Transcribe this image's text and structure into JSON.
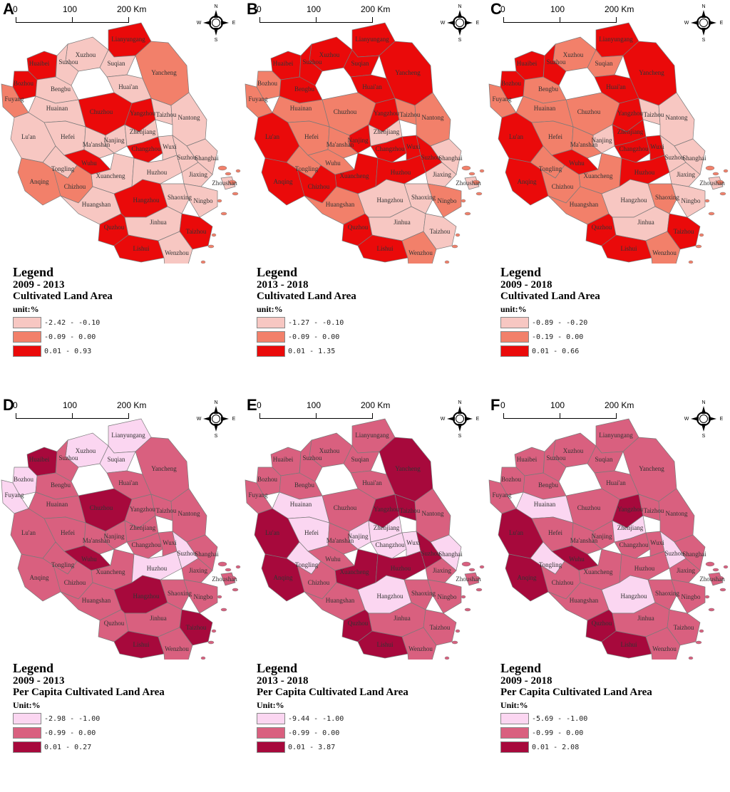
{
  "cities": [
    "Xuzhou",
    "Lianyungang",
    "Suqian",
    "Huaibei",
    "Suzhou_AH",
    "Bozhou",
    "Fuyang",
    "Bengbu",
    "Huai'an",
    "Yancheng",
    "Chuzhou",
    "Yangzhou",
    "Taizhou_JS",
    "Huainan",
    "Lu'an",
    "Hefei",
    "Nanjing",
    "Zhenjiang",
    "Nantong",
    "Ma'anshan",
    "Changzhou",
    "Wuxi",
    "Suzhou_JS",
    "Wuhu",
    "Shanghai",
    "Tongling",
    "Xuancheng",
    "Huzhou",
    "Jiaxing",
    "Anqing",
    "Chizhou",
    "Huangshan",
    "Hangzhou",
    "Shaoxing",
    "Ningbo",
    "Zhoushan",
    "Quzhou",
    "Jinhua",
    "Taizhou_ZJ",
    "Lishui",
    "Wenzhou"
  ],
  "city_labels": {
    "Xuzhou": "Xuzhou",
    "Lianyungang": "Lianyungang",
    "Suqian": "Suqian",
    "Huaibei": "Huaibei",
    "Suzhou_AH": "Suzhou",
    "Bozhou": "Bozhou",
    "Fuyang": "Fuyang",
    "Bengbu": "Bengbu",
    "Huai'an": "Huai'an",
    "Yancheng": "Yancheng",
    "Chuzhou": "Chuzhou",
    "Yangzhou": "Yangzhou",
    "Taizhou_JS": "Taizhou",
    "Huainan": "Huainan",
    "Lu'an": "Lu'an",
    "Hefei": "Hefei",
    "Nanjing": "Nanjing",
    "Zhenjiang": "Zhenjiang",
    "Nantong": "Nantong",
    "Ma'anshan": "Ma'anshan",
    "Changzhou": "Changzhou",
    "Wuxi": "Wuxi",
    "Suzhou_JS": "Suzhou",
    "Wuhu": "Wuhu",
    "Shanghai": "Shanghai",
    "Tongling": "Tongling",
    "Xuancheng": "Xuancheng",
    "Huzhou": "Huzhou",
    "Jiaxing": "Jiaxing",
    "Anqing": "Anqing",
    "Chizhou": "Chizhou",
    "Huangshan": "Huangshan",
    "Hangzhou": "Hangzhou",
    "Shaoxing": "Shaoxing",
    "Ningbo": "Ningbo",
    "Zhoushan": "Zhoushan",
    "Quzhou": "Quzhou",
    "Jinhua": "Jinhua",
    "Taizhou_ZJ": "Taizhou",
    "Lishui": "Lishui",
    "Wenzhou": "Wenzhou"
  },
  "compass": {
    "n": "N",
    "s": "S",
    "e": "E",
    "w": "W"
  },
  "scale": {
    "t0": "0",
    "t1": "100",
    "t2": "200 Km"
  },
  "panels": [
    {
      "letter": "A",
      "legend_title": "Legend",
      "period": "2009 - 2013",
      "variable": "Cultivated Land Area",
      "unit": "unit:%",
      "palette": [
        "#f7c7c2",
        "#f2806a",
        "#ea0a0a"
      ],
      "classes": [
        "-2.42 - -0.10",
        "-0.09 - 0.00",
        "0.01 - 0.93"
      ],
      "values": {
        "Xuzhou": 0,
        "Lianyungang": 2,
        "Suqian": 0,
        "Huaibei": 2,
        "Suzhou_AH": 0,
        "Bozhou": 2,
        "Fuyang": 1,
        "Bengbu": 0,
        "Huai'an": 0,
        "Yancheng": 1,
        "Chuzhou": 2,
        "Yangzhou": 2,
        "Taizhou_JS": 0,
        "Huainan": 0,
        "Lu'an": 0,
        "Hefei": 0,
        "Nanjing": 0,
        "Zhenjiang": 0,
        "Nantong": 0,
        "Ma'anshan": 0,
        "Changzhou": 2,
        "Wuxi": 0,
        "Suzhou_JS": 0,
        "Wuhu": 2,
        "Shanghai": 0,
        "Tongling": 0,
        "Xuancheng": 0,
        "Huzhou": 0,
        "Jiaxing": 0,
        "Anqing": 1,
        "Chizhou": 1,
        "Huangshan": 0,
        "Hangzhou": 2,
        "Shaoxing": 0,
        "Ningbo": 0,
        "Zhoushan": 0,
        "Quzhou": 2,
        "Jinhua": 0,
        "Taizhou_ZJ": 2,
        "Lishui": 2,
        "Wenzhou": 0
      }
    },
    {
      "letter": "B",
      "legend_title": "Legend",
      "period": "2013 - 2018",
      "variable": "Cultivated Land Area",
      "unit": "unit:%",
      "palette": [
        "#f7c7c2",
        "#f2806a",
        "#ea0a0a"
      ],
      "classes": [
        "-1.27 - -0.10",
        "-0.09 - 0.00",
        "0.01 - 1.35"
      ],
      "values": {
        "Xuzhou": 2,
        "Lianyungang": 2,
        "Suqian": 2,
        "Huaibei": 2,
        "Suzhou_AH": 2,
        "Bozhou": 1,
        "Fuyang": 1,
        "Bengbu": 2,
        "Huai'an": 2,
        "Yancheng": 2,
        "Chuzhou": 1,
        "Yangzhou": 2,
        "Taizhou_JS": 1,
        "Huainan": 1,
        "Lu'an": 2,
        "Hefei": 1,
        "Nanjing": 2,
        "Zhenjiang": 0,
        "Nantong": 1,
        "Ma'anshan": 1,
        "Changzhou": 2,
        "Wuxi": 2,
        "Suzhou_JS": 2,
        "Wuhu": 1,
        "Shanghai": 0,
        "Tongling": 1,
        "Xuancheng": 2,
        "Huzhou": 2,
        "Jiaxing": 0,
        "Anqing": 2,
        "Chizhou": 2,
        "Huangshan": 1,
        "Hangzhou": 0,
        "Shaoxing": 0,
        "Ningbo": 1,
        "Zhoushan": 0,
        "Quzhou": 2,
        "Jinhua": 0,
        "Taizhou_ZJ": 0,
        "Lishui": 2,
        "Wenzhou": 1
      }
    },
    {
      "letter": "C",
      "legend_title": "Legend",
      "period": "2009 - 2018",
      "variable": "Cultivated Land Area",
      "unit": "unit:%",
      "palette": [
        "#f7c7c2",
        "#f2806a",
        "#ea0a0a"
      ],
      "classes": [
        "-0.89 - -0.20",
        "-0.19 - 0.00",
        "0.01 - 0.66"
      ],
      "values": {
        "Xuzhou": 1,
        "Lianyungang": 2,
        "Suqian": 1,
        "Huaibei": 2,
        "Suzhou_AH": 2,
        "Bozhou": 2,
        "Fuyang": 1,
        "Bengbu": 1,
        "Huai'an": 2,
        "Yancheng": 2,
        "Chuzhou": 1,
        "Yangzhou": 2,
        "Taizhou_JS": 0,
        "Huainan": 1,
        "Lu'an": 2,
        "Hefei": 1,
        "Nanjing": 0,
        "Zhenjiang": 2,
        "Nantong": 0,
        "Ma'anshan": 1,
        "Changzhou": 2,
        "Wuxi": 2,
        "Suzhou_JS": 0,
        "Wuhu": 2,
        "Shanghai": 0,
        "Tongling": 1,
        "Xuancheng": 1,
        "Huzhou": 2,
        "Jiaxing": 0,
        "Anqing": 2,
        "Chizhou": 1,
        "Huangshan": 1,
        "Hangzhou": 0,
        "Shaoxing": 1,
        "Ningbo": 0,
        "Zhoushan": 0,
        "Quzhou": 2,
        "Jinhua": 0,
        "Taizhou_ZJ": 2,
        "Lishui": 2,
        "Wenzhou": 1
      }
    },
    {
      "letter": "D",
      "legend_title": "Legend",
      "period": "2009 - 2013",
      "variable": "Per Capita Cultivated Land Area",
      "unit": "Unit:%",
      "palette": [
        "#fbd6f1",
        "#d9607f",
        "#a7093c"
      ],
      "classes": [
        "-2.98 - -1.00",
        "-0.99 - 0.00",
        "0.01 - 0.27"
      ],
      "values": {
        "Xuzhou": 0,
        "Lianyungang": 0,
        "Suqian": 0,
        "Huaibei": 2,
        "Suzhou_AH": 1,
        "Bozhou": 0,
        "Fuyang": 0,
        "Bengbu": 1,
        "Huai'an": 1,
        "Yancheng": 1,
        "Chuzhou": 2,
        "Yangzhou": 1,
        "Taizhou_JS": 1,
        "Huainan": 1,
        "Lu'an": 1,
        "Hefei": 1,
        "Nanjing": 1,
        "Zhenjiang": 1,
        "Nantong": 1,
        "Ma'anshan": 1,
        "Changzhou": 1,
        "Wuxi": 1,
        "Suzhou_JS": 0,
        "Wuhu": 2,
        "Shanghai": 1,
        "Tongling": 1,
        "Xuancheng": 1,
        "Huzhou": 0,
        "Jiaxing": 1,
        "Anqing": 1,
        "Chizhou": 1,
        "Huangshan": 1,
        "Hangzhou": 2,
        "Shaoxing": 1,
        "Ningbo": 1,
        "Zhoushan": 1,
        "Quzhou": 1,
        "Jinhua": 1,
        "Taizhou_ZJ": 2,
        "Lishui": 2,
        "Wenzhou": 1
      }
    },
    {
      "letter": "E",
      "legend_title": "Legend",
      "period": "2013 - 2018",
      "variable": "Per Capita Cultivated Land Area",
      "unit": "Unit:%",
      "palette": [
        "#fbd6f1",
        "#d9607f",
        "#a7093c"
      ],
      "classes": [
        "-9.44 - -1.00",
        "-0.99 - 0.00",
        "0.01 - 3.87"
      ],
      "values": {
        "Xuzhou": 1,
        "Lianyungang": 1,
        "Suqian": 1,
        "Huaibei": 1,
        "Suzhou_AH": 1,
        "Bozhou": 1,
        "Fuyang": 1,
        "Bengbu": 1,
        "Huai'an": 1,
        "Yancheng": 2,
        "Chuzhou": 1,
        "Yangzhou": 2,
        "Taizhou_JS": 2,
        "Huainan": 0,
        "Lu'an": 2,
        "Hefei": 0,
        "Nanjing": 0,
        "Zhenjiang": 0,
        "Nantong": 1,
        "Ma'anshan": 1,
        "Changzhou": 0,
        "Wuxi": 0,
        "Suzhou_JS": 2,
        "Wuhu": 1,
        "Shanghai": 0,
        "Tongling": 0,
        "Xuancheng": 2,
        "Huzhou": 2,
        "Jiaxing": 1,
        "Anqing": 2,
        "Chizhou": 1,
        "Huangshan": 1,
        "Hangzhou": 0,
        "Shaoxing": 1,
        "Ningbo": 1,
        "Zhoushan": 1,
        "Quzhou": 2,
        "Jinhua": 1,
        "Taizhou_ZJ": 1,
        "Lishui": 2,
        "Wenzhou": 1
      }
    },
    {
      "letter": "F",
      "legend_title": "Legend",
      "period": "2009 - 2018",
      "variable": "Per Capita Cultivated Land Area",
      "unit": "Unit:%",
      "palette": [
        "#fbd6f1",
        "#d9607f",
        "#a7093c"
      ],
      "classes": [
        "-5.69 - -1.00",
        "-0.99 - 0.00",
        "0.01 - 2.08"
      ],
      "values": {
        "Xuzhou": 1,
        "Lianyungang": 1,
        "Suqian": 1,
        "Huaibei": 1,
        "Suzhou_AH": 1,
        "Bozhou": 1,
        "Fuyang": 1,
        "Bengbu": 1,
        "Huai'an": 1,
        "Yancheng": 1,
        "Chuzhou": 1,
        "Yangzhou": 2,
        "Taizhou_JS": 1,
        "Huainan": 0,
        "Lu'an": 2,
        "Hefei": 1,
        "Nanjing": 1,
        "Zhenjiang": 0,
        "Nantong": 1,
        "Ma'anshan": 1,
        "Changzhou": 1,
        "Wuxi": 1,
        "Suzhou_JS": 0,
        "Wuhu": 2,
        "Shanghai": 1,
        "Tongling": 0,
        "Xuancheng": 1,
        "Huzhou": 1,
        "Jiaxing": 1,
        "Anqing": 2,
        "Chizhou": 1,
        "Huangshan": 1,
        "Hangzhou": 0,
        "Shaoxing": 1,
        "Ningbo": 1,
        "Zhoushan": 1,
        "Quzhou": 2,
        "Jinhua": 1,
        "Taizhou_ZJ": 1,
        "Lishui": 2,
        "Wenzhou": 1
      }
    }
  ]
}
